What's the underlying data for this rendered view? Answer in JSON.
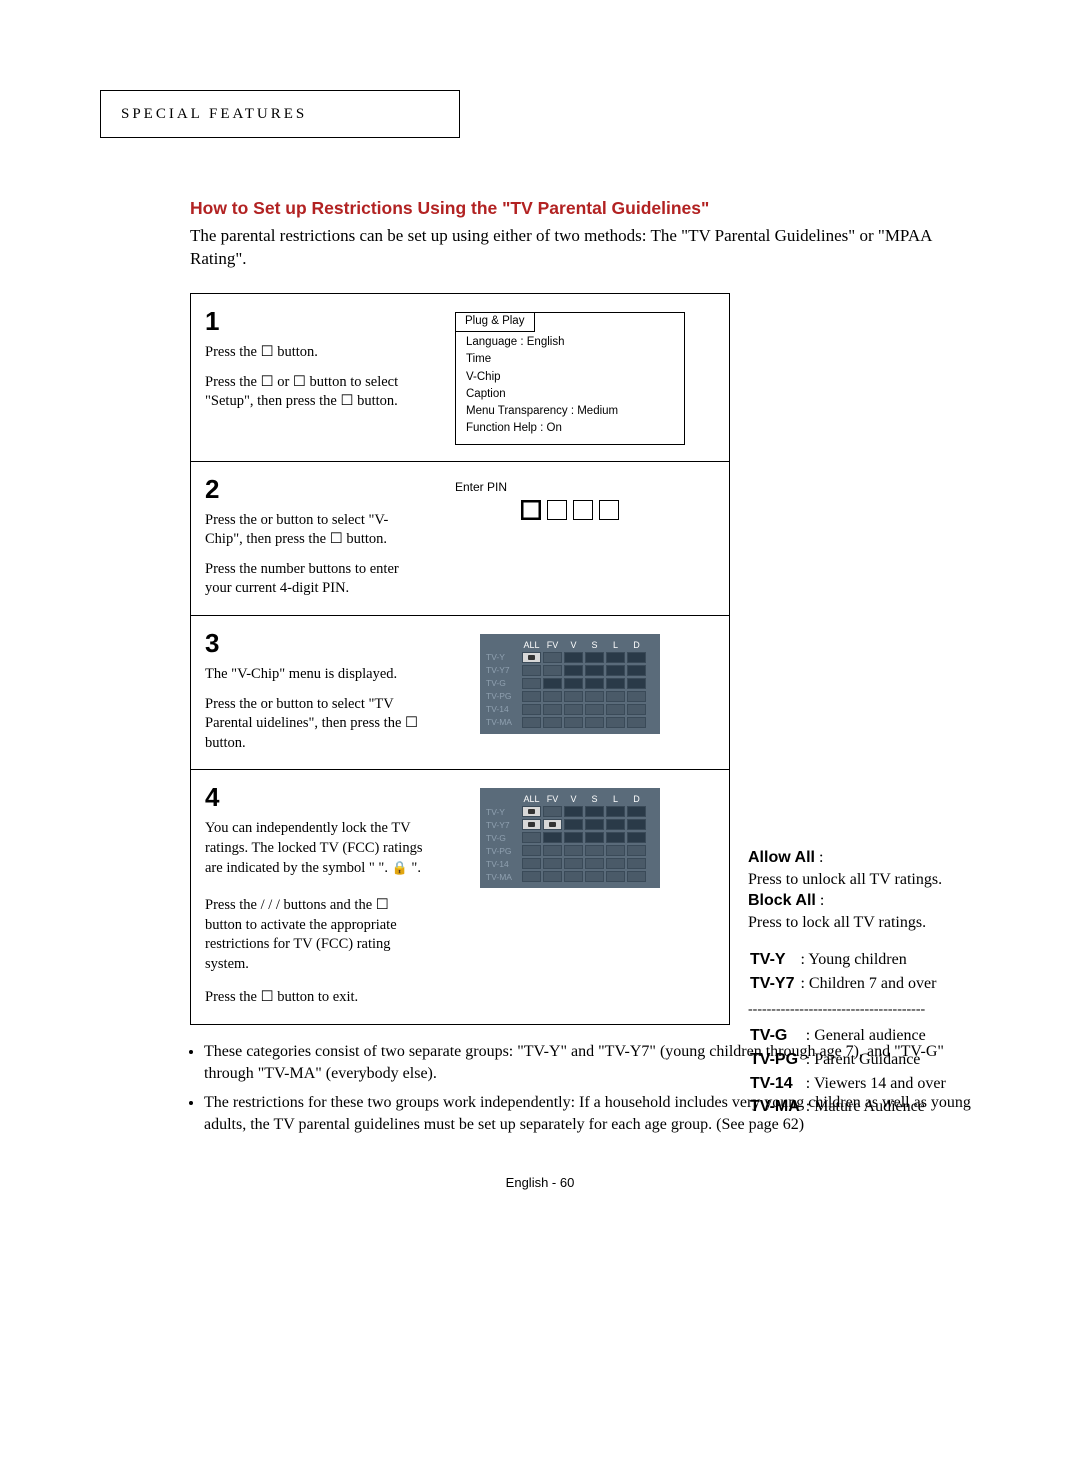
{
  "header": {
    "title": "SPECIAL FEATURES"
  },
  "section_title": "How to Set up Restrictions Using the \"TV Parental Guidelines\"",
  "intro": "The parental restrictions can be set up using either of two methods: The \"TV Parental Guidelines\" or \"MPAA Rating\".",
  "steps": {
    "s1": {
      "num": "1",
      "line1": "Press the  ☐       button.",
      "line2": "Press the  ☐ or ☐ button to select \"Setup\", then press the ☐        button.",
      "menu_title": "Plug & Play",
      "menu_items": [
        "Language            :  English",
        "Time",
        "V-Chip",
        "Caption",
        "Menu Transparency  :   Medium",
        "Function Help         :   On"
      ]
    },
    "s2": {
      "num": "2",
      "line1": "Press the     or     button to select \"V-Chip\", then press the ☐         button.",
      "line2": "Press the number buttons to enter your current 4-digit PIN.",
      "pin_label": "Enter PIN"
    },
    "s3": {
      "num": "3",
      "line1": "The \"V-Chip\" menu is displayed.",
      "line2": "Press the     or     button to select \"TV Parental   uidelines\", then press the ☐         button."
    },
    "s4": {
      "num": "4",
      "line1": "You can independently lock the TV ratings. The locked TV (FCC) ratings are indicated by the symbol \"     \".",
      "line2": "Press the    /   /   /    buttons and the ☐       button to activate the appropriate restrictions for TV (FCC) rating system.",
      "line3": "Press the  ☐    button to exit."
    }
  },
  "grid": {
    "headers": [
      "ALL",
      "FV",
      "V",
      "S",
      "L",
      "D"
    ],
    "rows": [
      "TV-Y",
      "TV-Y7",
      "TV-G",
      "TV-PG",
      "TV-14",
      "TV-MA"
    ]
  },
  "sidebar": {
    "allow_label": "Allow All",
    "allow_text": "Press to unlock all TV ratings.",
    "block_label": "Block All",
    "block_text": "Press to lock all TV ratings.",
    "ratings1": [
      {
        "code": "TV-Y",
        "desc": ": Young children"
      },
      {
        "code": "TV-Y7",
        "desc": ": Children 7 and over"
      }
    ],
    "dash": "--------------------------------------",
    "ratings2": [
      {
        "code": "TV-G",
        "desc": ": General audience"
      },
      {
        "code": "TV-PG",
        "desc": ": Parent Guidance"
      },
      {
        "code": "TV-14",
        "desc": ": Viewers 14 and over"
      },
      {
        "code": "TV-MA",
        "desc": ": Mature Audience"
      }
    ]
  },
  "bullets": [
    "These categories consist of two separate groups: \"TV-Y\" and \"TV-Y7\" (young children through age 7), and \"TV-G\" through \"TV-MA\" (everybody else).",
    "The restrictions for these two groups work independently: If a household includes very young children as well as young adults, the TV parental guidelines must be set up separately for each age group. (See page 62)"
  ],
  "footer": "English - 60",
  "colors": {
    "title_red": "#b22222",
    "grid_bg": "#5a6b7a",
    "grid_text_dim": "#8fa0b0"
  }
}
